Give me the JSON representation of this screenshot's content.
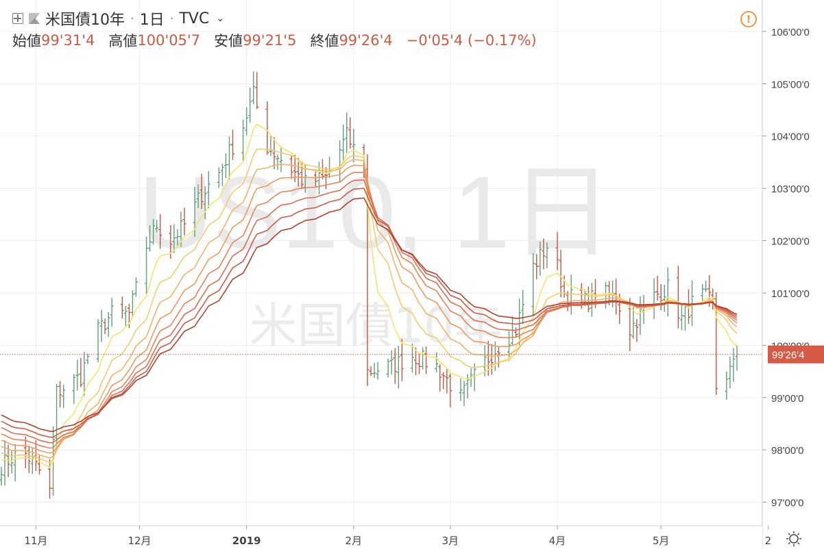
{
  "header": {
    "symbol": "米国債10年",
    "interval": "1日",
    "exchange": "TVC",
    "ohlc": [
      {
        "label": "始値",
        "value": "99'31'4"
      },
      {
        "label": "高値",
        "value": "100'05'7"
      },
      {
        "label": "安値",
        "value": "99'21'5"
      },
      {
        "label": "終値",
        "value": "99'26'4"
      }
    ],
    "change": "−0'05'4 (−0.17%)"
  },
  "watermark": {
    "line1": "US10, 1日",
    "line2": "米国債10年"
  },
  "colors": {
    "up": "#5f9e7a",
    "down": "#c4553f",
    "last_price": "#d65a45",
    "grid": "#eeeeee",
    "ribbon": [
      "#f5e46e",
      "#f3cd6c",
      "#f0b367",
      "#ec9a62",
      "#e5835b",
      "#dc6d53",
      "#cf5a49",
      "#b0412e"
    ]
  },
  "chart_data": {
    "type": "ohlc_bar_with_moving_average_ribbon",
    "price_axis": {
      "range": [
        96.55,
        106.6
      ],
      "ticks": [
        {
          "value": 97,
          "label": "97'00'0"
        },
        {
          "value": 98,
          "label": "98'00'0"
        },
        {
          "value": 99,
          "label": "99'00'0"
        },
        {
          "value": 100,
          "label": "100'00'0"
        },
        {
          "value": 101,
          "label": "101'00'0"
        },
        {
          "value": 102,
          "label": "102'00'0"
        },
        {
          "value": 103,
          "label": "103'00'0"
        },
        {
          "value": 104,
          "label": "104'00'0"
        },
        {
          "value": 105,
          "label": "105'00'0"
        },
        {
          "value": 106,
          "label": "106'00'0"
        }
      ],
      "last_price": {
        "value": 99.825,
        "label": "99'26'4"
      }
    },
    "time_axis": {
      "range": [
        "2018-10-22",
        "2019-05-23"
      ],
      "ticks": [
        {
          "date": "2018-11-01",
          "label": "11月"
        },
        {
          "date": "2018-12-01",
          "label": "12月"
        },
        {
          "date": "2019-01-01",
          "label": "2019"
        },
        {
          "date": "2019-02-01",
          "label": "2月"
        },
        {
          "date": "2019-03-01",
          "label": "3月"
        },
        {
          "date": "2019-04-01",
          "label": "4月"
        },
        {
          "date": "2019-05-01",
          "label": "5月"
        },
        {
          "date": "2019-06-01",
          "label": "2"
        }
      ]
    },
    "grid": true,
    "price_anchors": [
      [
        "2018-10-22",
        97.7
      ],
      [
        "2018-10-28",
        98.0
      ],
      [
        "2018-11-02",
        97.6
      ],
      [
        "2018-11-05",
        97.2
      ],
      [
        "2018-11-07",
        99.1
      ],
      [
        "2018-11-14",
        99.4
      ],
      [
        "2018-11-18",
        100.2
      ],
      [
        "2018-11-23",
        100.6
      ],
      [
        "2018-11-28",
        100.6
      ],
      [
        "2018-12-01",
        101.3
      ],
      [
        "2018-12-03",
        101.9
      ],
      [
        "2018-12-06",
        102.3
      ],
      [
        "2018-12-10",
        102.0
      ],
      [
        "2018-12-14",
        102.3
      ],
      [
        "2018-12-19",
        102.9
      ],
      [
        "2018-12-24",
        103.3
      ],
      [
        "2018-12-31",
        104.2
      ],
      [
        "2019-01-03",
        104.8
      ],
      [
        "2019-01-07",
        103.8
      ],
      [
        "2019-01-12",
        103.5
      ],
      [
        "2019-01-18",
        103.1
      ],
      [
        "2019-01-24",
        103.2
      ],
      [
        "2019-01-30",
        104.0
      ],
      [
        "2019-02-04",
        103.4
      ],
      [
        "2019-02-05",
        99.5
      ],
      [
        "2019-02-12",
        99.6
      ],
      [
        "2019-02-18",
        99.8
      ],
      [
        "2019-02-25",
        99.6
      ],
      [
        "2019-03-04",
        99.0
      ],
      [
        "2019-03-10",
        99.6
      ],
      [
        "2019-03-15",
        100.0
      ],
      [
        "2019-03-20",
        100.3
      ],
      [
        "2019-03-25",
        101.5
      ],
      [
        "2019-03-30",
        102.0
      ],
      [
        "2019-04-03",
        101.0
      ],
      [
        "2019-04-08",
        100.8
      ],
      [
        "2019-04-14",
        101.0
      ],
      [
        "2019-04-18",
        100.9
      ],
      [
        "2019-04-22",
        100.3
      ],
      [
        "2019-04-28",
        100.9
      ],
      [
        "2019-05-03",
        101.1
      ],
      [
        "2019-05-07",
        100.5
      ],
      [
        "2019-05-12",
        101.0
      ],
      [
        "2019-05-16",
        100.8
      ],
      [
        "2019-05-17",
        99.2
      ],
      [
        "2019-05-22",
        99.6
      ],
      [
        "2019-05-23",
        99.825
      ]
    ],
    "moving_averages": {
      "smoothing_factors": [
        0.22,
        0.13,
        0.095,
        0.075,
        0.062,
        0.053,
        0.046,
        0.04
      ]
    }
  }
}
